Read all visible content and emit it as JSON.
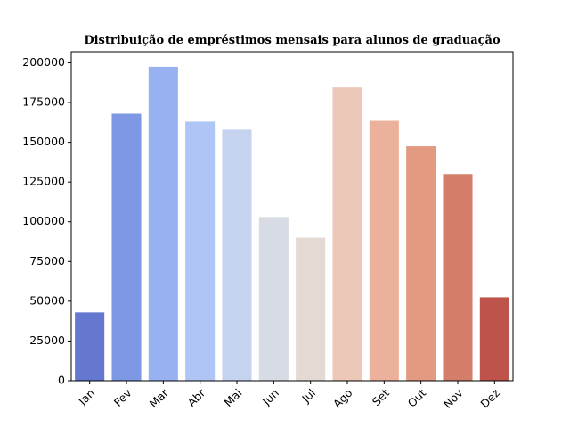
{
  "chart_data": {
    "type": "bar",
    "title": "Distribuição de empréstimos mensais para alunos de graduação",
    "xlabel": "",
    "ylabel": "",
    "categories": [
      "Jan",
      "Fev",
      "Mar",
      "Abr",
      "Mai",
      "Jun",
      "Jul",
      "Ago",
      "Set",
      "Out",
      "Nov",
      "Dez"
    ],
    "values": [
      43000,
      168000,
      197500,
      163000,
      158000,
      103000,
      90000,
      184500,
      163500,
      147500,
      130000,
      52500
    ],
    "colors": [
      "#6578d0",
      "#7e98e4",
      "#97b1f1",
      "#aec5f6",
      "#c5d3ef",
      "#d6dbe4",
      "#e4d9d3",
      "#ecc8b8",
      "#ebb19b",
      "#e29a81",
      "#d47e6a",
      "#be534c"
    ],
    "ylim": [
      0,
      207000
    ],
    "yticks": [
      0,
      25000,
      50000,
      75000,
      100000,
      125000,
      150000,
      175000,
      200000
    ],
    "ytick_labels": [
      "0",
      "25000",
      "50000",
      "75000",
      "100000",
      "125000",
      "150000",
      "175000",
      "200000"
    ],
    "xtick_rotation": 45,
    "grid": false,
    "legend": "none"
  }
}
